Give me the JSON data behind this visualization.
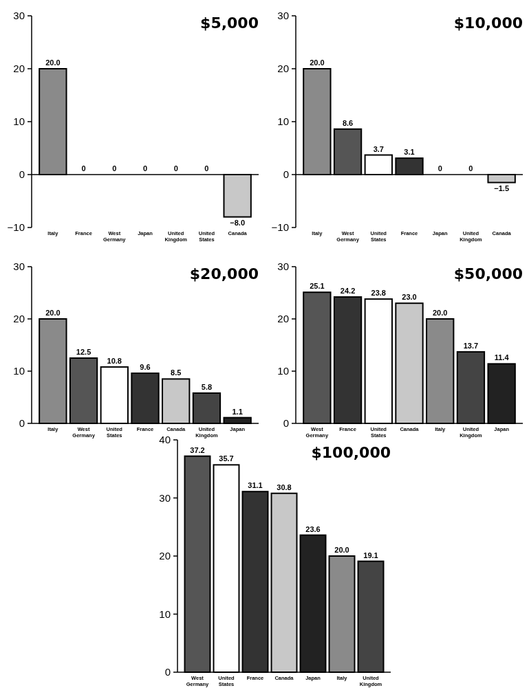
{
  "chart_data": [
    {
      "type": "bar",
      "title": "$5,000",
      "categories": [
        "Italy",
        "France",
        "West Germany",
        "Japan",
        "United Kingdom",
        "United States",
        "Canada"
      ],
      "values": [
        20.0,
        0,
        0,
        0,
        0,
        0,
        -8.0
      ],
      "value_labels": [
        "20.0",
        "0",
        "0",
        "0",
        "0",
        "0",
        "−8.0"
      ],
      "colors": [
        "#8a8a8a",
        "#555555",
        "#555555",
        "#333333",
        "#444444",
        "#ffffff",
        "#c8c8c8"
      ],
      "ylim": [
        -10,
        30
      ],
      "yticks": [
        {
          "value": -10,
          "label": "−10"
        },
        0,
        10,
        20,
        30
      ]
    },
    {
      "type": "bar",
      "title": "$10,000",
      "categories": [
        "Italy",
        "West Germany",
        "United States",
        "France",
        "Japan",
        "United Kingdom",
        "Canada"
      ],
      "values": [
        20.0,
        8.6,
        3.7,
        3.1,
        0,
        0,
        -1.5
      ],
      "value_labels": [
        "20.0",
        "8.6",
        "3.7",
        "3.1",
        "0",
        "0",
        "−1.5"
      ],
      "colors": [
        "#8a8a8a",
        "#555555",
        "#ffffff",
        "#333333",
        "#333333",
        "#444444",
        "#c8c8c8"
      ],
      "ylim": [
        -10,
        30
      ],
      "yticks": [
        {
          "value": -10,
          "label": "−10"
        },
        0,
        10,
        20,
        30
      ]
    },
    {
      "type": "bar",
      "title": "$20,000",
      "categories": [
        "Italy",
        "West Germany",
        "United States",
        "France",
        "Canada",
        "United Kingdom",
        "Japan"
      ],
      "values": [
        20.0,
        12.5,
        10.8,
        9.6,
        8.5,
        5.8,
        1.1
      ],
      "value_labels": [
        "20.0",
        "12.5",
        "10.8",
        "9.6",
        "8.5",
        "5.8",
        "1.1"
      ],
      "colors": [
        "#8a8a8a",
        "#555555",
        "#ffffff",
        "#333333",
        "#c8c8c8",
        "#444444",
        "#222222"
      ],
      "ylim": [
        0,
        30
      ],
      "yticks": [
        0,
        10,
        20,
        30
      ]
    },
    {
      "type": "bar",
      "title": "$50,000",
      "categories": [
        "West Germany",
        "France",
        "United States",
        "Canada",
        "Italy",
        "United Kingdom",
        "Japan"
      ],
      "values": [
        25.1,
        24.2,
        23.8,
        23.0,
        20.0,
        13.7,
        11.4
      ],
      "value_labels": [
        "25.1",
        "24.2",
        "23.8",
        "23.0",
        "20.0",
        "13.7",
        "11.4"
      ],
      "colors": [
        "#555555",
        "#333333",
        "#ffffff",
        "#c8c8c8",
        "#8a8a8a",
        "#444444",
        "#222222"
      ],
      "ylim": [
        0,
        30
      ],
      "yticks": [
        0,
        10,
        20,
        30
      ]
    },
    {
      "type": "bar",
      "title": "$100,000",
      "categories": [
        "West Germany",
        "United States",
        "France",
        "Canada",
        "Japan",
        "Italy",
        "United Kingdom"
      ],
      "values": [
        37.2,
        35.7,
        31.1,
        30.8,
        23.6,
        20.0,
        19.1
      ],
      "value_labels": [
        "37.2",
        "35.7",
        "31.1",
        "30.8",
        "23.6",
        "20.0",
        "19.1"
      ],
      "colors": [
        "#555555",
        "#ffffff",
        "#333333",
        "#c8c8c8",
        "#222222",
        "#8a8a8a",
        "#444444"
      ],
      "ylim": [
        0,
        40
      ],
      "yticks": [
        0,
        10,
        20,
        30,
        40
      ]
    }
  ]
}
